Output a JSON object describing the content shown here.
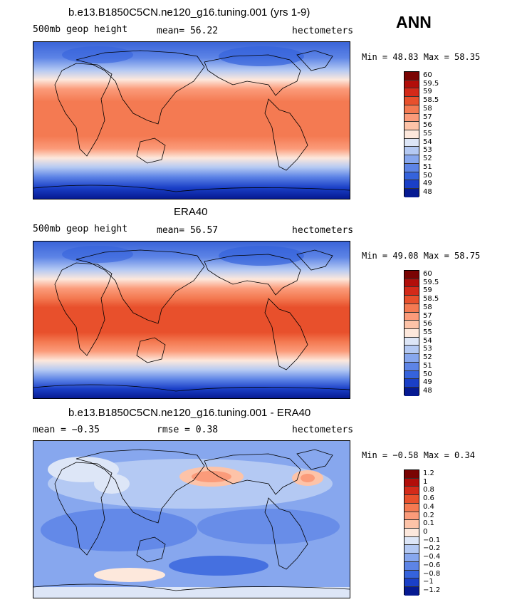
{
  "season": "ANN",
  "panels": [
    {
      "title": "b.e13.B1850C5CN.ne120_g16.tuning.001 (yrs 1-9)",
      "left_label": "500mb geop height",
      "center_label": "mean=  56.22",
      "units": "hectometers",
      "stats": "Min =  48.83 Max =  58.35",
      "colorbar": [
        "60",
        "59.5",
        "59",
        "58.5",
        "58",
        "57",
        "56",
        "55",
        "54",
        "53",
        "52",
        "51",
        "50",
        "49",
        "48"
      ],
      "colors": [
        "#7a0403",
        "#b20e0a",
        "#d42a19",
        "#e8502c",
        "#f47a52",
        "#fb9b7a",
        "#fdc3a8",
        "#fde8dc",
        "#dde6f7",
        "#b4c9f3",
        "#87a7ee",
        "#5d84e6",
        "#3563dc",
        "#1a3fc7",
        "#061a92"
      ]
    },
    {
      "title": "ERA40",
      "left_label": "500mb geop height",
      "center_label": "mean=  56.57",
      "units": "hectometers",
      "stats": "Min =  49.08 Max =  58.75",
      "colorbar": [
        "60",
        "59.5",
        "59",
        "58.5",
        "58",
        "57",
        "56",
        "55",
        "54",
        "53",
        "52",
        "51",
        "50",
        "49",
        "48"
      ],
      "colors": [
        "#7a0403",
        "#b20e0a",
        "#d42a19",
        "#e8502c",
        "#f47a52",
        "#fb9b7a",
        "#fdc3a8",
        "#fde8dc",
        "#dde6f7",
        "#b4c9f3",
        "#87a7ee",
        "#5d84e6",
        "#3563dc",
        "#1a3fc7",
        "#061a92"
      ]
    },
    {
      "title": "b.e13.B1850C5CN.ne120_g16.tuning.001 - ERA40",
      "left_label": "mean =  −0.35",
      "center_label": "rmse =   0.38",
      "units": "hectometers",
      "stats": "Min =  −0.58 Max =   0.34",
      "colorbar": [
        "1.2",
        "1",
        "0.8",
        "0.6",
        "0.4",
        "0.2",
        "0.1",
        "0",
        "−0.1",
        "−0.2",
        "−0.4",
        "−0.6",
        "−0.8",
        "−1",
        "−1.2"
      ],
      "colors": [
        "#7a0403",
        "#b20e0a",
        "#d42a19",
        "#e8502c",
        "#f47a52",
        "#fb9b7a",
        "#fdc3a8",
        "#fde8dc",
        "#dde6f7",
        "#b4c9f3",
        "#87a7ee",
        "#5d84e6",
        "#3563dc",
        "#1a3fc7",
        "#061a92"
      ]
    }
  ]
}
